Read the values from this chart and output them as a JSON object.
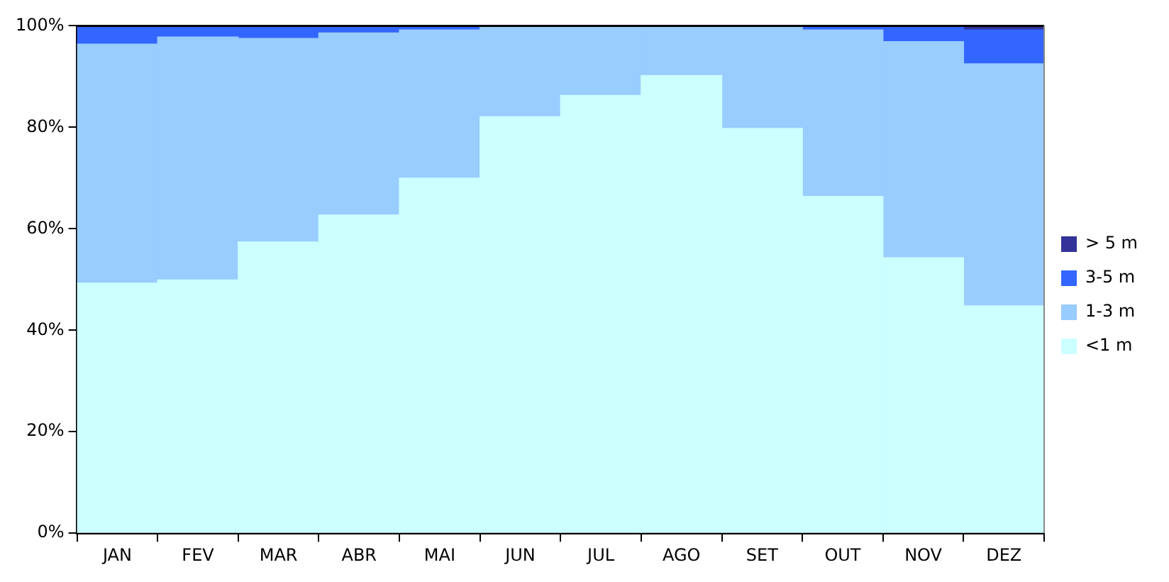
{
  "chart_data": {
    "type": "bar",
    "stacked": true,
    "categories": [
      "JAN",
      "FEV",
      "MAR",
      "ABR",
      "MAI",
      "JUN",
      "JUL",
      "AGO",
      "SET",
      "OUT",
      "NOV",
      "DEZ"
    ],
    "series": [
      {
        "name": "<1 m",
        "color": "#ccffff",
        "values": [
          49.3,
          49.9,
          57.4,
          62.7,
          70.0,
          82.1,
          86.3,
          90.2,
          79.8,
          66.4,
          54.3,
          44.8
        ]
      },
      {
        "name": "1-3 m",
        "color": "#99ccff",
        "values": [
          47.1,
          47.9,
          40.1,
          35.9,
          29.2,
          17.9,
          13.7,
          9.8,
          20.2,
          32.8,
          42.6,
          47.7
        ]
      },
      {
        "name": "3-5 m",
        "color": "#3366ff",
        "values": [
          3.6,
          2.2,
          2.5,
          1.2,
          0.6,
          0,
          0,
          0,
          0,
          0.6,
          2.9,
          6.7
        ]
      },
      {
        "name": "> 5 m",
        "color": "#333399",
        "values": [
          0,
          0,
          0,
          0.2,
          0.2,
          0,
          0,
          0,
          0,
          0.2,
          0.2,
          0.8
        ]
      }
    ],
    "ylim": [
      0,
      100
    ],
    "yticks": [
      {
        "value": 0,
        "label": "0%"
      },
      {
        "value": 20,
        "label": "20%"
      },
      {
        "value": 40,
        "label": "40%"
      },
      {
        "value": 60,
        "label": "60%"
      },
      {
        "value": 80,
        "label": "80%"
      },
      {
        "value": 100,
        "label": "100%"
      }
    ],
    "grid": false,
    "legend": "right"
  }
}
